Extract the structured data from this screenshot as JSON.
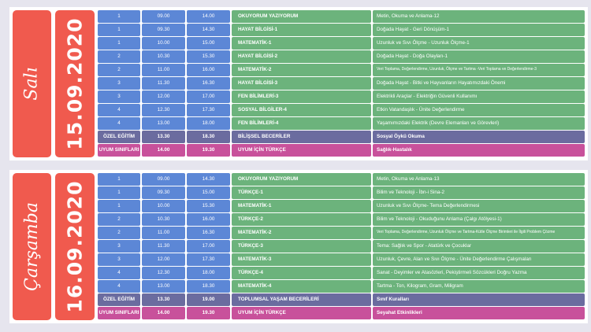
{
  "schedule": [
    {
      "day": "Salı",
      "date": "15.09.2020",
      "rows": [
        {
          "grade": "1",
          "start": "09.00",
          "end": "14.00",
          "course": "OKUYORUM YAZIYORUM",
          "topic": "Metin, Okuma ve Anlama-12",
          "type": "regular"
        },
        {
          "grade": "1",
          "start": "09.30",
          "end": "14.30",
          "course": "HAYAT BİLGİSİ-1",
          "topic": "Doğada Hayat - Geri Dönüşüm-1",
          "type": "regular"
        },
        {
          "grade": "1",
          "start": "10.00",
          "end": "15.00",
          "course": "MATEMATİK-1",
          "topic": "Uzunluk ve Sıvı Ölçme - Uzunluk Ölçme-1",
          "type": "regular"
        },
        {
          "grade": "2",
          "start": "10.30",
          "end": "15.30",
          "course": "HAYAT BİLGİSİ-2",
          "topic": "Doğada Hayat - Doğa Olayları-1",
          "type": "regular"
        },
        {
          "grade": "2",
          "start": "11.00",
          "end": "16.00",
          "course": "MATEMATİK-2",
          "topic": "Veri Toplama, Değerlendirme, Uzunluk, Ölçme ve Tartma -Veri Toplama ve Değerlendirme-3",
          "type": "regular"
        },
        {
          "grade": "3",
          "start": "11.30",
          "end": "16.30",
          "course": "HAYAT BİLGİSİ-3",
          "topic": "Doğada Hayat - Bitki ve Hayvanların Hayatımızdaki Önemi",
          "type": "regular"
        },
        {
          "grade": "3",
          "start": "12.00",
          "end": "17.00",
          "course": "FEN BİLİMLERİ-3",
          "topic": "Elektrikli Araçlar - Elektriğin Güvenli Kullanımı",
          "type": "regular"
        },
        {
          "grade": "4",
          "start": "12.30",
          "end": "17.30",
          "course": "SOSYAL BİLGİLER-4",
          "topic": "Etkin Vatandaşlık - Ünite Değerlendirme",
          "type": "regular"
        },
        {
          "grade": "4",
          "start": "13.00",
          "end": "18.00",
          "course": "FEN BİLİMLERİ-4",
          "topic": "Yaşamımızdaki Elektrik (Devre Elemanları ve Görevleri)",
          "type": "regular"
        },
        {
          "grade": "ÖZEL EĞİTİM",
          "start": "13.30",
          "end": "18.30",
          "course": "BİLİŞSEL BECERİLER",
          "topic": "Sosyal Öykü Okuma",
          "type": "special"
        },
        {
          "grade": "UYUM SINIFLARI",
          "start": "14.00",
          "end": "19.30",
          "course": "UYUM İÇİN TÜRKÇE",
          "topic": "Sağlık-Hastalık",
          "type": "adapt"
        }
      ]
    },
    {
      "day": "Çarşamba",
      "date": "16.09.2020",
      "rows": [
        {
          "grade": "1",
          "start": "09.00",
          "end": "14.30",
          "course": "OKUYORUM YAZIYORUM",
          "topic": "Metin, Okuma ve Anlama-13",
          "type": "regular"
        },
        {
          "grade": "1",
          "start": "09.30",
          "end": "15.00",
          "course": "TÜRKÇE-1",
          "topic": "Bilim ve Teknoloji - İbn-i Sina-2",
          "type": "regular"
        },
        {
          "grade": "1",
          "start": "10.00",
          "end": "15.30",
          "course": "MATEMATİK-1",
          "topic": "Uzunluk ve Sıvı Ölçme- Tema Değerlendirmesi",
          "type": "regular"
        },
        {
          "grade": "2",
          "start": "10.30",
          "end": "16.00",
          "course": "TÜRKÇE-2",
          "topic": "Bilim ve Teknoloji - Okuduğunu Anlama (Çalgı Atölyesi-1)",
          "type": "regular"
        },
        {
          "grade": "2",
          "start": "11.00",
          "end": "16.30",
          "course": "MATEMATİK-2",
          "topic": "Veri Toplama, Değerlendirme, Uzunluk Ölçme ve Tartma-Kütle Ölçme Birimleri ile İlgili Problem Çözme",
          "type": "regular"
        },
        {
          "grade": "3",
          "start": "11.30",
          "end": "17.00",
          "course": "TÜRKÇE-3",
          "topic": "Tema: Sağlık ve Spor - Atatürk ve Çocuklar",
          "type": "regular"
        },
        {
          "grade": "3",
          "start": "12.00",
          "end": "17.30",
          "course": "MATEMATİK-3",
          "topic": "Uzunluk, Çevre, Alan ve Sıvı Ölçme - Ünite Değerlendirme Çalışmaları",
          "type": "regular"
        },
        {
          "grade": "4",
          "start": "12.30",
          "end": "18.00",
          "course": "TÜRKÇE-4",
          "topic": "Sanat - Deyimler ve Atasözleri, Pekiştirmeli Sözcükleri Doğru Yazma",
          "type": "regular"
        },
        {
          "grade": "4",
          "start": "13.00",
          "end": "18.30",
          "course": "MATEMATİK-4",
          "topic": "Tartma - Ton, Kilogram, Gram, Miligram",
          "type": "regular"
        },
        {
          "grade": "ÖZEL EĞİTİM",
          "start": "13.30",
          "end": "19.00",
          "course": "TOPLUMSAL YAŞAM BECERİLERİ",
          "topic": "Sınıf Kuralları",
          "type": "special"
        },
        {
          "grade": "UYUM SINIFLARI",
          "start": "14.00",
          "end": "19.30",
          "course": "UYUM İÇİN TÜRKÇE",
          "topic": "Seyahat Etkinlikleri",
          "type": "adapt"
        }
      ]
    }
  ],
  "colors": {
    "day_box": "#f05a4e",
    "regular_meta": "#5c87d6",
    "regular_body": "#6cb37c",
    "special": "#6b6c9f",
    "adapt": "#c8519b",
    "background": "#e6e5ee"
  }
}
